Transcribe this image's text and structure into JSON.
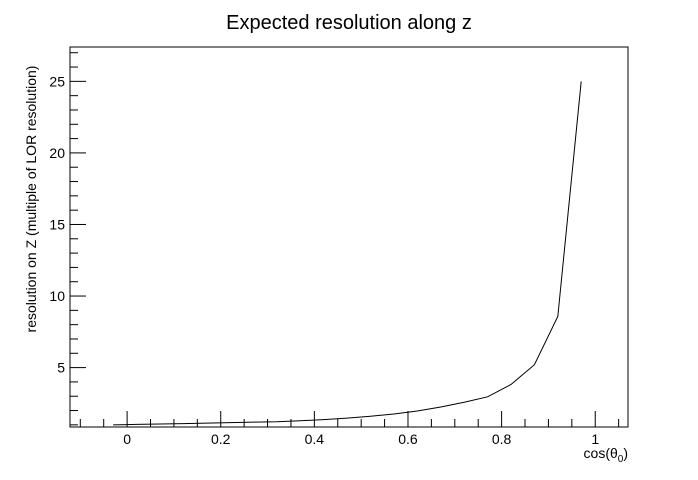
{
  "chart_data": {
    "type": "line",
    "title": "Expected resolution along z",
    "xlabel": "cos(θ",
    "xlabel_subscript": "0",
    "xlabel_suffix": ")",
    "ylabel": "resolution on Z (multiple of LOR resolution)",
    "xlim": [
      -0.122,
      1.07
    ],
    "ylim": [
      0.85,
      27.4
    ],
    "x_ticks": [
      0,
      0.2,
      0.4,
      0.6,
      0.8,
      1
    ],
    "x_tick_labels": [
      "0",
      "0.2",
      "0.4",
      "0.6",
      "0.8",
      "1"
    ],
    "y_ticks": [
      5,
      10,
      15,
      20,
      25
    ],
    "y_tick_labels": [
      "5",
      "10",
      "15",
      "20",
      "25"
    ],
    "grid": false,
    "legend": "none",
    "line_color": "#000000",
    "x": [
      -0.03,
      0.02,
      0.07,
      0.12,
      0.17,
      0.22,
      0.27,
      0.32,
      0.37,
      0.42,
      0.47,
      0.52,
      0.57,
      0.62,
      0.67,
      0.72,
      0.77,
      0.82,
      0.87,
      0.92,
      0.97
    ],
    "y": [
      1.0,
      1.03,
      1.06,
      1.09,
      1.12,
      1.16,
      1.19,
      1.22,
      1.29,
      1.37,
      1.47,
      1.6,
      1.76,
      1.97,
      2.25,
      2.58,
      2.96,
      3.82,
      5.2,
      8.57,
      25.0
    ]
  }
}
